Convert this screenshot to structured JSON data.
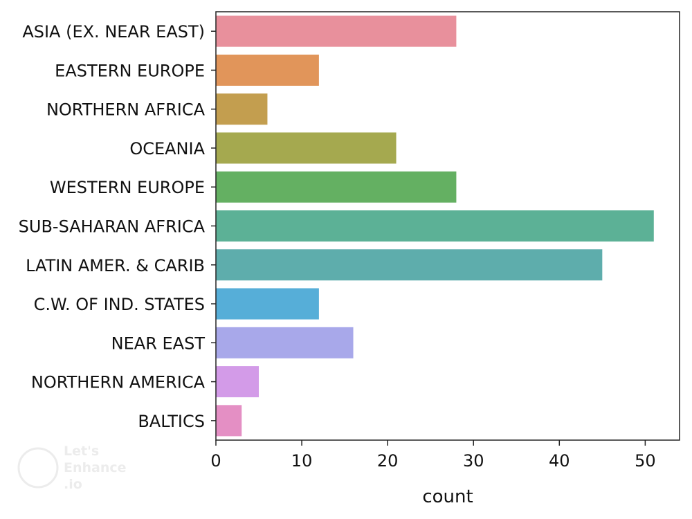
{
  "chart_data": {
    "type": "bar",
    "orientation": "horizontal",
    "categories": [
      "ASIA (EX. NEAR EAST)",
      "EASTERN EUROPE",
      "NORTHERN AFRICA",
      "OCEANIA",
      "WESTERN EUROPE",
      "SUB-SAHARAN AFRICA",
      "LATIN AMER. & CARIB",
      "C.W. OF IND. STATES",
      "NEAR EAST",
      "NORTHERN AMERICA",
      "BALTICS"
    ],
    "values": [
      28,
      12,
      6,
      21,
      28,
      51,
      45,
      12,
      16,
      5,
      3
    ],
    "colors": [
      "#e8909c",
      "#e1955a",
      "#c39e4f",
      "#a5a94f",
      "#64b062",
      "#5cb196",
      "#5eadac",
      "#56aed8",
      "#a8a8ea",
      "#d39be8",
      "#e48fc4"
    ],
    "title": "",
    "xlabel": "count",
    "ylabel": "",
    "xlim": [
      0,
      54
    ],
    "xticks": [
      0,
      10,
      20,
      30,
      40,
      50
    ],
    "grid": false,
    "legend": "none"
  },
  "watermark": {
    "line1": "Let's",
    "line2": "Enhance",
    "line3": ".io"
  }
}
